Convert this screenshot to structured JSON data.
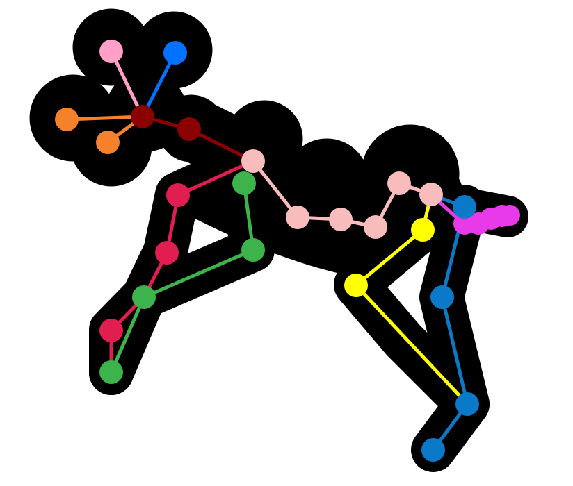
{
  "figure": {
    "kind": "animal-pose-skeleton",
    "background": "#ffffff",
    "silhouette_color": "#000000",
    "skeleton": {
      "head": {
        "color": "#8b0000",
        "keypoints": [
          "head-center",
          "neck"
        ]
      },
      "left_ear": {
        "color": "#ffa0c8",
        "keypoints": [
          "left-ear-tip"
        ]
      },
      "right_ear": {
        "color": "#0072ff",
        "keypoints": [
          "right-ear-tip"
        ]
      },
      "antlers_or_nose": {
        "color": "#f5822a",
        "keypoints": [
          "nose-tip-upper",
          "nose-tip-lower"
        ]
      },
      "spine": {
        "color": "#f8bcbc",
        "keypoints": [
          "withers",
          "back-1",
          "back-2",
          "back-3",
          "hip",
          "tail-base"
        ]
      },
      "tail": {
        "color": "#e83ae8",
        "keypoints": [
          "tail-1",
          "tail-2",
          "tail-3",
          "tail-4",
          "tail-5"
        ]
      },
      "front_left_leg": {
        "color": "#e01e50",
        "keypoints": [
          "fl-elbow",
          "fl-knee",
          "fl-fetlock"
        ]
      },
      "front_right_leg": {
        "color": "#3cb44b",
        "keypoints": [
          "fr-shoulder",
          "fr-elbow",
          "fr-knee",
          "fr-hoof"
        ]
      },
      "back_left_leg": {
        "color": "#ffff00",
        "keypoints": [
          "bl-thigh",
          "bl-hock"
        ]
      },
      "back_right_leg": {
        "color": "#0a7ac8",
        "keypoints": [
          "br-hip",
          "br-stifle",
          "br-hock",
          "br-hoof"
        ]
      }
    }
  }
}
